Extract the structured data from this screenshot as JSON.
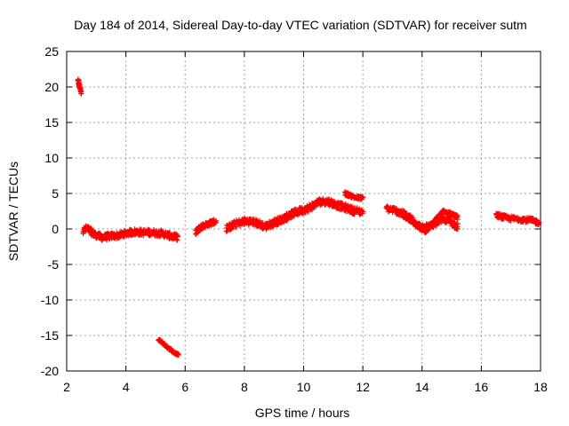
{
  "chart_data": {
    "type": "scatter",
    "title": "Day 184 of 2014, Sidereal Day-to-day VTEC variation (SDTVAR) for receiver sutm",
    "xlabel": "GPS time / hours",
    "ylabel": "SDTVAR / TECUs",
    "xlim": [
      2,
      18
    ],
    "ylim": [
      -20,
      25
    ],
    "xticks": [
      2,
      4,
      6,
      8,
      10,
      12,
      14,
      16,
      18
    ],
    "yticks": [
      25,
      20,
      15,
      10,
      5,
      0,
      -5,
      -10,
      -15,
      -20
    ],
    "grid": true,
    "marker": "+",
    "series": [
      {
        "name": "SDTVAR",
        "color": "#ff0000",
        "segments": [
          {
            "points": [
              [
                2.38,
                21.0
              ],
              [
                2.42,
                20.3
              ],
              [
                2.46,
                19.6
              ],
              [
                2.5,
                19.1
              ]
            ],
            "spread": 0.3
          },
          {
            "points": [
              [
                2.55,
                -0.2
              ],
              [
                2.7,
                0.1
              ],
              [
                2.9,
                -0.7
              ],
              [
                3.2,
                -1.2
              ],
              [
                3.5,
                -1.0
              ],
              [
                3.8,
                -0.9
              ],
              [
                4.0,
                -0.6
              ],
              [
                4.3,
                -0.4
              ],
              [
                4.6,
                -0.5
              ],
              [
                4.9,
                -0.5
              ],
              [
                5.2,
                -0.6
              ],
              [
                5.5,
                -1.0
              ],
              [
                5.75,
                -1.2
              ]
            ],
            "spread": 0.9
          },
          {
            "points": [
              [
                5.1,
                -15.6
              ],
              [
                5.3,
                -16.3
              ],
              [
                5.5,
                -17.0
              ],
              [
                5.7,
                -17.6
              ],
              [
                5.8,
                -17.7
              ]
            ],
            "spread": 0.3
          },
          {
            "points": [
              [
                6.35,
                -0.4
              ],
              [
                6.5,
                0.2
              ],
              [
                6.7,
                0.6
              ],
              [
                6.9,
                0.9
              ],
              [
                7.05,
                1.1
              ]
            ],
            "spread": 0.8
          },
          {
            "points": [
              [
                7.4,
                0.1
              ],
              [
                7.7,
                0.7
              ],
              [
                8.0,
                1.1
              ],
              [
                8.3,
                1.0
              ],
              [
                8.5,
                0.7
              ],
              [
                8.7,
                0.3
              ],
              [
                9.0,
                0.9
              ],
              [
                9.3,
                1.4
              ],
              [
                9.6,
                2.1
              ],
              [
                9.9,
                2.6
              ],
              [
                10.2,
                3.0
              ],
              [
                10.5,
                3.8
              ],
              [
                10.8,
                3.9
              ],
              [
                11.1,
                3.4
              ],
              [
                11.4,
                3.0
              ],
              [
                11.7,
                2.6
              ],
              [
                12.0,
                2.4
              ]
            ],
            "spread": 1.0
          },
          {
            "points": [
              [
                11.4,
                5.0
              ],
              [
                11.7,
                4.5
              ],
              [
                12.0,
                4.3
              ]
            ],
            "spread": 0.5
          },
          {
            "points": [
              [
                12.8,
                2.9
              ],
              [
                13.1,
                2.6
              ],
              [
                13.4,
                2.1
              ],
              [
                13.7,
                1.2
              ],
              [
                14.0,
                0.1
              ],
              [
                14.3,
                0.4
              ],
              [
                14.6,
                1.3
              ],
              [
                14.9,
                1.2
              ],
              [
                15.2,
                0.3
              ]
            ],
            "spread": 0.9
          },
          {
            "points": [
              [
                13.2,
                2.3
              ],
              [
                13.5,
                1.6
              ],
              [
                13.8,
                0.5
              ],
              [
                14.1,
                -0.3
              ],
              [
                14.4,
                0.9
              ],
              [
                14.7,
                2.4
              ],
              [
                15.0,
                2.1
              ],
              [
                15.2,
                1.6
              ]
            ],
            "spread": 0.6
          },
          {
            "points": [
              [
                16.5,
                1.9
              ],
              [
                16.9,
                1.5
              ],
              [
                17.3,
                1.4
              ],
              [
                17.7,
                1.2
              ],
              [
                17.95,
                0.9
              ]
            ],
            "spread": 0.7
          }
        ]
      }
    ]
  }
}
